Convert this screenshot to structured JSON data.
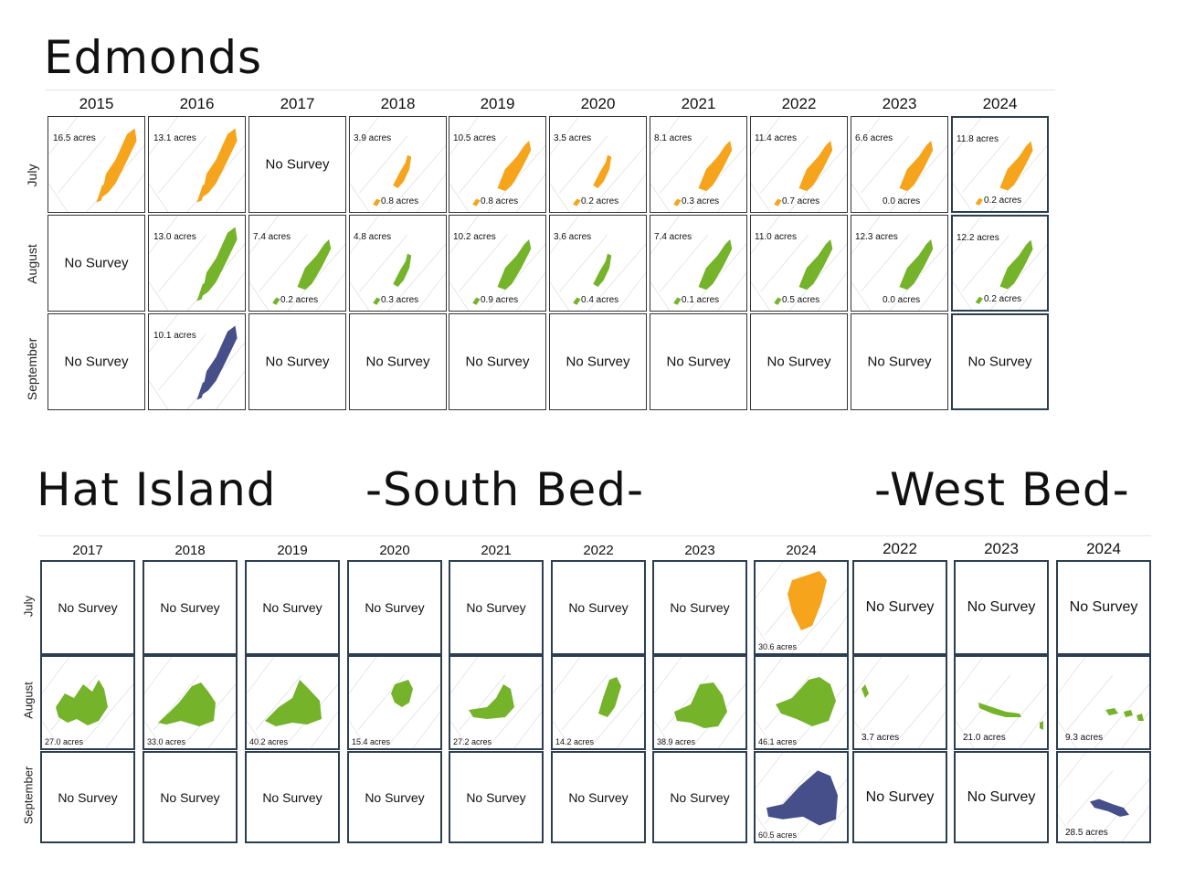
{
  "sections": {
    "edmonds": "Edmonds",
    "hat_island": "Hat Island",
    "south_bed": "-South Bed-",
    "west_bed": "-West Bed-"
  },
  "months": [
    "July",
    "August",
    "September"
  ],
  "edmonds": {
    "years": [
      "2015",
      "2016",
      "2017",
      "2018",
      "2019",
      "2020",
      "2021",
      "2022",
      "2023",
      "2024"
    ],
    "cells": {
      "july": [
        {
          "a": "16.5 acres",
          "b": ""
        },
        {
          "a": "13.1 acres",
          "b": ""
        },
        {
          "ns": "No Survey"
        },
        {
          "a": "3.9 acres",
          "b": "0.8 acres"
        },
        {
          "a": "10.5 acres",
          "b": "0.8 acres"
        },
        {
          "a": "3.5 acres",
          "b": "0.2 acres"
        },
        {
          "a": "8.1 acres",
          "b": "0.3 acres"
        },
        {
          "a": "11.4 acres",
          "b": "0.7 acres"
        },
        {
          "a": "6.6 acres",
          "b": "0.0 acres"
        },
        {
          "a": "11.8 acres",
          "b": "0.2 acres"
        }
      ],
      "august": [
        {
          "ns": "No Survey"
        },
        {
          "a": "13.0 acres",
          "b": ""
        },
        {
          "a": "7.4 acres",
          "b": "0.2 acres"
        },
        {
          "a": "4.8 acres",
          "b": "0.3 acres"
        },
        {
          "a": "10.2 acres",
          "b": "0.9 acres"
        },
        {
          "a": "3.6 acres",
          "b": "0.4 acres"
        },
        {
          "a": "7.4 acres",
          "b": "0.1 acres"
        },
        {
          "a": "11.0 acres",
          "b": "0.5 acres"
        },
        {
          "a": "12.3 acres",
          "b": "0.0 acres"
        },
        {
          "a": "12.2 acres",
          "b": "0.2 acres"
        }
      ],
      "september": [
        {
          "ns": "No Survey"
        },
        {
          "a": "10.1 acres",
          "b": ""
        },
        {
          "ns": "No Survey"
        },
        {
          "ns": "No Survey"
        },
        {
          "ns": "No Survey"
        },
        {
          "ns": "No Survey"
        },
        {
          "ns": "No Survey"
        },
        {
          "ns": "No Survey"
        },
        {
          "ns": "No Survey"
        },
        {
          "ns": "No Survey"
        }
      ]
    }
  },
  "hat": {
    "south_years": [
      "2017",
      "2018",
      "2019",
      "2020",
      "2021",
      "2022",
      "2023",
      "2024"
    ],
    "west_years": [
      "2022",
      "2023",
      "2024"
    ],
    "south": {
      "july": [
        "No Survey",
        "No Survey",
        "No Survey",
        "No Survey",
        "No Survey",
        "No Survey",
        "No Survey",
        "30.6 acres"
      ],
      "august": [
        "27.0 acres",
        "33.0 acres",
        "40.2 acres",
        "15.4 acres",
        "27.2 acres",
        "14.2 acres",
        "38.9 acres",
        "46.1 acres"
      ],
      "september": [
        "No Survey",
        "No Survey",
        "No Survey",
        "No Survey",
        "No Survey",
        "No Survey",
        "No Survey",
        "60.5 acres"
      ]
    },
    "west": {
      "july": [
        "No Survey",
        "No Survey",
        "No Survey"
      ],
      "august": [
        "3.7 acres",
        "21.0 acres",
        "9.3 acres"
      ],
      "september": [
        "No Survey",
        "No Survey",
        "28.5 acres"
      ]
    }
  },
  "colors": {
    "july": "#f5a41b",
    "august": "#74b32a",
    "september": "#474f8a",
    "border": "#333333"
  }
}
